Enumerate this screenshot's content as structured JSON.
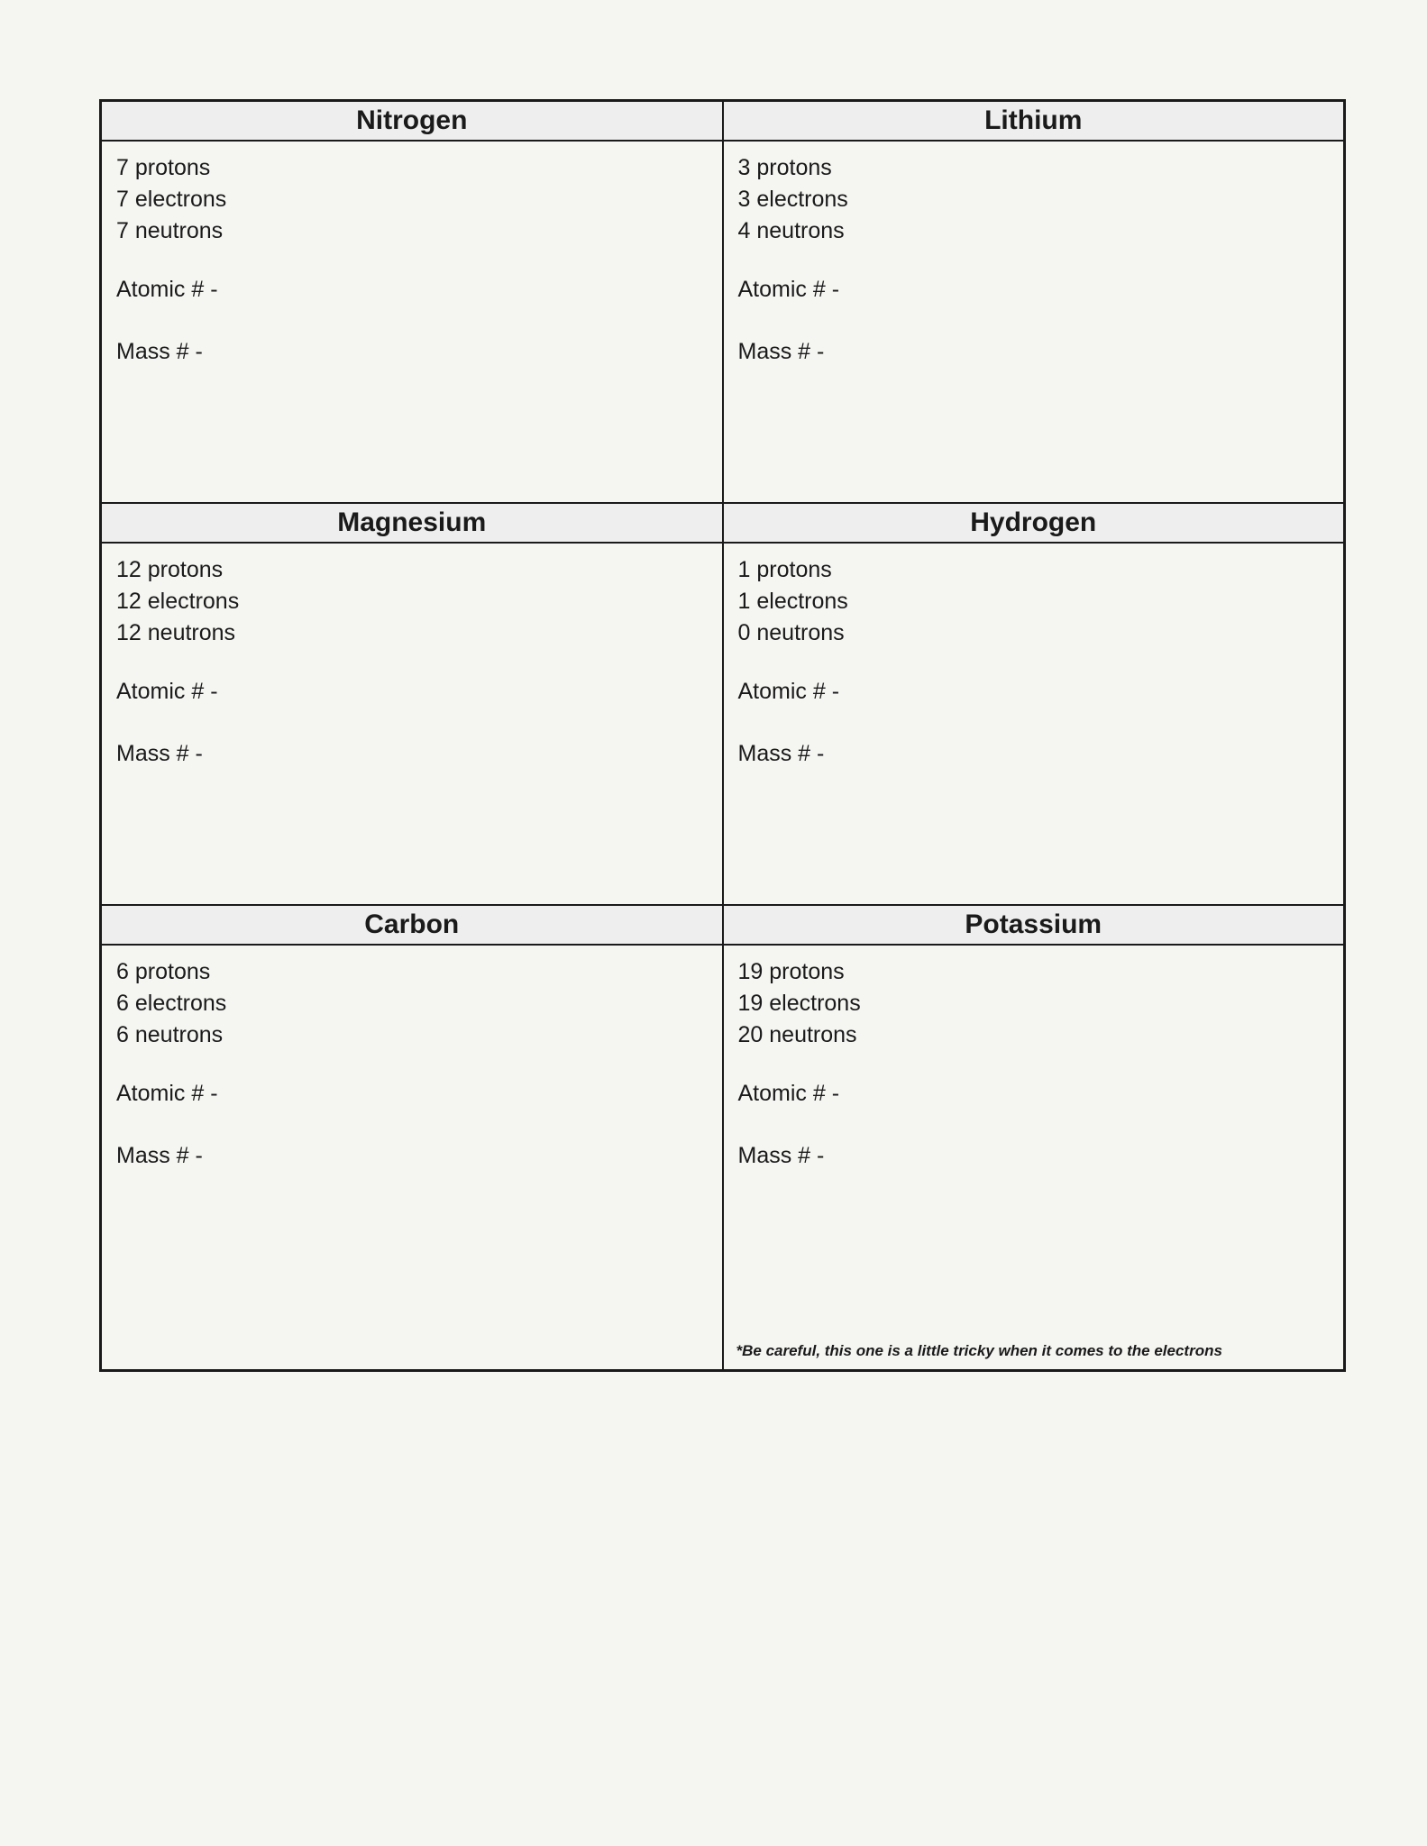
{
  "labels": {
    "protons": "protons",
    "electrons": "electrons",
    "neutrons": "neutrons",
    "atomic_num": "Atomic # -",
    "mass_num": "Mass # -"
  },
  "style": {
    "type": "table",
    "columns": 2,
    "rows": 3,
    "border_color": "#1a1a1a",
    "border_width_outer": 3,
    "border_width_inner": 2,
    "header_bg": "#eeeeee",
    "page_bg": "#f5f5f2",
    "text_color": "#1a1a1a",
    "header_fontsize": 30,
    "body_fontsize": 25,
    "footnote_fontsize": 17,
    "font_family": "Comic Sans MS"
  },
  "cells": [
    {
      "name": "Nitrogen",
      "protons": 7,
      "electrons": 7,
      "neutrons": 7
    },
    {
      "name": "Lithium",
      "protons": 3,
      "electrons": 3,
      "neutrons": 4
    },
    {
      "name": "Magnesium",
      "protons": 12,
      "electrons": 12,
      "neutrons": 12
    },
    {
      "name": "Hydrogen",
      "protons": 1,
      "electrons": 1,
      "neutrons": 0
    },
    {
      "name": "Carbon",
      "protons": 6,
      "electrons": 6,
      "neutrons": 6
    },
    {
      "name": "Potassium",
      "protons": 19,
      "electrons": 19,
      "neutrons": 20,
      "footnote": "*Be careful, this one is a little tricky when it comes to the electrons"
    }
  ]
}
